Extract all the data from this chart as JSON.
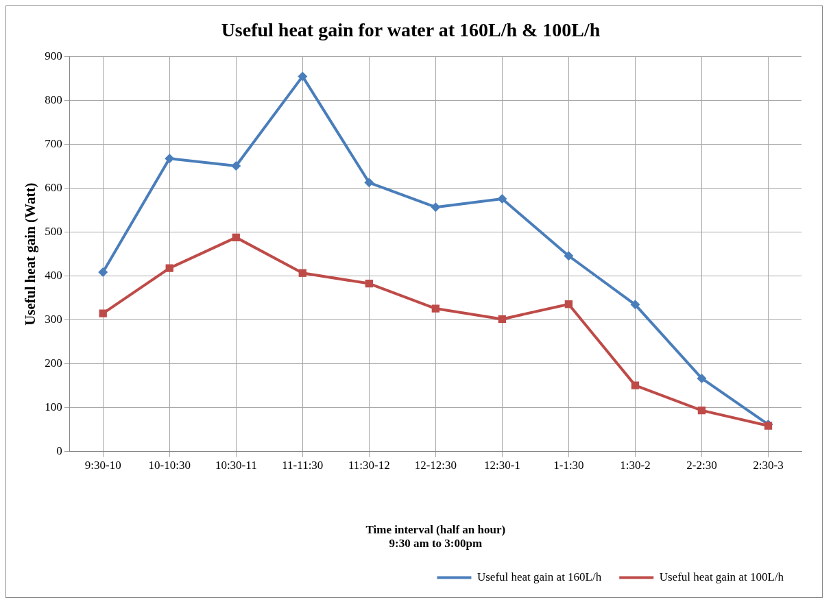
{
  "chart_data": {
    "type": "line",
    "title": "Useful heat gain for water at 160L/h & 100L/h",
    "xlabel": "Time interval (half an hour)\n9:30 am to 3:00pm",
    "ylabel": "Useful heat gain (Watt)",
    "categories": [
      "9:30-10",
      "10-10:30",
      "10:30-11",
      "11-11:30",
      "11:30-12",
      "12-12:30",
      "12:30-1",
      "1-1:30",
      "1:30-2",
      "2-2:30",
      "2:30-3"
    ],
    "series": [
      {
        "name": "Useful heat gain at 160L/h",
        "color": "#4a7ebb",
        "marker": "diamond",
        "values": [
          409,
          668,
          651,
          855,
          613,
          557,
          576,
          446,
          335,
          167,
          62
        ]
      },
      {
        "name": "Useful heat gain at 100L/h",
        "color": "#be4b48",
        "marker": "square",
        "values": [
          315,
          418,
          488,
          407,
          383,
          326,
          302,
          336,
          151,
          94,
          59
        ]
      }
    ],
    "ylim": [
      0,
      900
    ],
    "yticks": [
      0,
      100,
      200,
      300,
      400,
      500,
      600,
      700,
      800,
      900
    ],
    "grid": true,
    "legend": "bottom right",
    "line_style": "solid"
  }
}
